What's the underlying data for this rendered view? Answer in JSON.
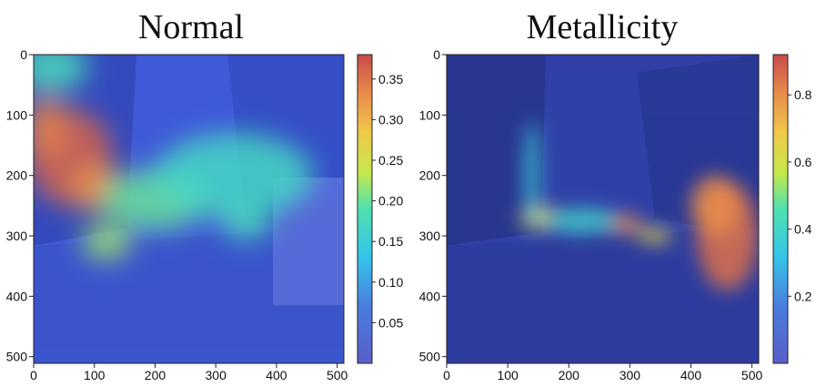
{
  "chart_data": [
    {
      "type": "heatmap",
      "title": "Normal",
      "xlim": [
        0,
        511
      ],
      "ylim": [
        511,
        0
      ],
      "x_ticks": [
        0,
        100,
        200,
        300,
        400,
        500
      ],
      "y_ticks": [
        0,
        100,
        200,
        300,
        400,
        500
      ],
      "colorbar": {
        "range": [
          0.0,
          0.38
        ],
        "ticks": [
          "0.05",
          "0.10",
          "0.15",
          "0.20",
          "0.25",
          "0.30",
          "0.35"
        ],
        "colormap": "jet"
      },
      "grid": false,
      "background_image": "street scene photograph overlaid with heatmap",
      "hotspots": [
        {
          "x": 60,
          "y": 170,
          "value": 0.36,
          "rx": 70,
          "ry": 80
        },
        {
          "x": 100,
          "y": 220,
          "value": 0.33,
          "rx": 40,
          "ry": 40
        },
        {
          "x": 20,
          "y": 120,
          "value": 0.34,
          "rx": 35,
          "ry": 50
        },
        {
          "x": 200,
          "y": 240,
          "value": 0.2,
          "rx": 90,
          "ry": 50
        },
        {
          "x": 330,
          "y": 200,
          "value": 0.17,
          "rx": 130,
          "ry": 70
        },
        {
          "x": 120,
          "y": 310,
          "value": 0.22,
          "rx": 40,
          "ry": 30
        },
        {
          "x": 30,
          "y": 20,
          "value": 0.18,
          "rx": 60,
          "ry": 40
        },
        {
          "x": 350,
          "y": 280,
          "value": 0.18,
          "rx": 40,
          "ry": 25
        }
      ]
    },
    {
      "type": "heatmap",
      "title": "Metallicity",
      "xlim": [
        0,
        511
      ],
      "ylim": [
        511,
        0
      ],
      "x_ticks": [
        0,
        100,
        200,
        300,
        400,
        500
      ],
      "y_ticks": [
        0,
        100,
        200,
        300,
        400,
        500
      ],
      "colorbar": {
        "range": [
          0.0,
          0.92
        ],
        "ticks": [
          "0.2",
          "0.4",
          "0.6",
          "0.8"
        ],
        "colormap": "jet"
      },
      "grid": false,
      "background_image": "street scene photograph overlaid with heatmap",
      "hotspots": [
        {
          "x": 460,
          "y": 300,
          "value": 0.85,
          "rx": 50,
          "ry": 90
        },
        {
          "x": 440,
          "y": 250,
          "value": 0.8,
          "rx": 40,
          "ry": 50
        },
        {
          "x": 150,
          "y": 270,
          "value": 0.65,
          "rx": 30,
          "ry": 20
        },
        {
          "x": 290,
          "y": 280,
          "value": 0.8,
          "rx": 30,
          "ry": 15
        },
        {
          "x": 340,
          "y": 300,
          "value": 0.65,
          "rx": 30,
          "ry": 12
        },
        {
          "x": 140,
          "y": 200,
          "value": 0.35,
          "rx": 12,
          "ry": 90
        },
        {
          "x": 220,
          "y": 275,
          "value": 0.4,
          "rx": 60,
          "ry": 20
        }
      ]
    }
  ],
  "colors": {
    "jet_low": "#5a5fc8",
    "jet_high": "#c84a4a"
  }
}
